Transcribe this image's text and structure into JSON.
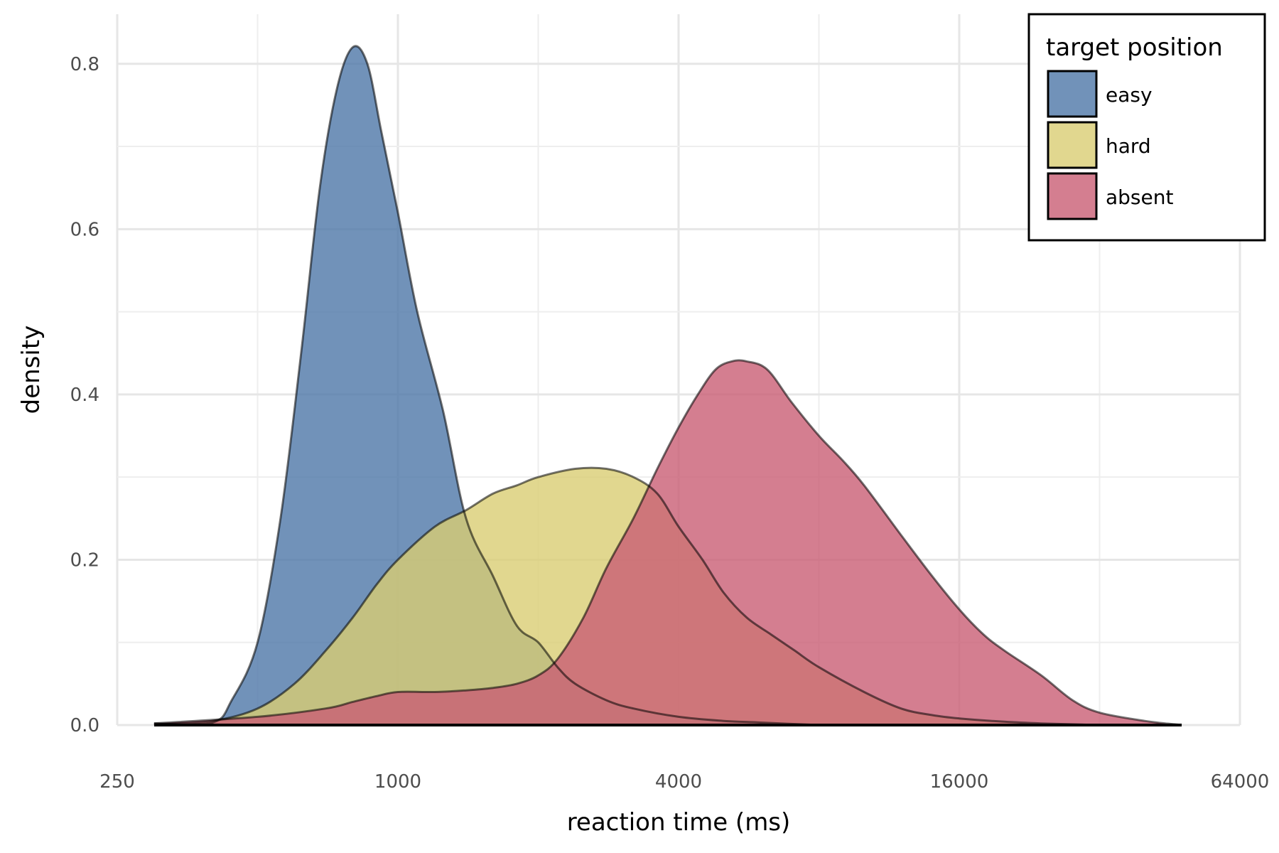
{
  "chart_data": {
    "type": "area",
    "xlabel": "reaction time (ms)",
    "ylabel": "density",
    "x_scale": "log2",
    "xlim": [
      250,
      64000
    ],
    "ylim": [
      0,
      0.86
    ],
    "x_ticks": [
      250,
      1000,
      4000,
      16000,
      64000
    ],
    "x_tick_labels": [
      "250",
      "1000",
      "4000",
      "16000",
      "64000"
    ],
    "y_ticks": [
      0.0,
      0.2,
      0.4,
      0.6,
      0.8
    ],
    "y_tick_labels": [
      "0.0",
      "0.2",
      "0.4",
      "0.6",
      "0.8"
    ],
    "grid": true,
    "legend": {
      "title": "target position",
      "placement": "top-right"
    },
    "series": [
      {
        "name": "easy",
        "color": "#4e77a8",
        "x": [
          300,
          400,
          440,
          500,
          560,
          620,
          680,
          740,
          800,
          860,
          920,
          1000,
          1100,
          1250,
          1400,
          1600,
          1800,
          2000,
          2200,
          2400,
          2800,
          3200,
          4000,
          5000,
          6000,
          8000
        ],
        "y": [
          0.002,
          0.003,
          0.03,
          0.1,
          0.25,
          0.45,
          0.65,
          0.77,
          0.82,
          0.8,
          0.72,
          0.62,
          0.5,
          0.38,
          0.25,
          0.18,
          0.12,
          0.1,
          0.07,
          0.05,
          0.03,
          0.02,
          0.01,
          0.005,
          0.003,
          0.0
        ]
      },
      {
        "name": "hard",
        "color": "#d9cd73",
        "x": [
          300,
          400,
          500,
          600,
          700,
          800,
          900,
          1000,
          1200,
          1400,
          1600,
          1800,
          2000,
          2400,
          2800,
          3200,
          3600,
          4000,
          4500,
          5000,
          5600,
          6300,
          7100,
          8000,
          10000,
          12000,
          14000,
          16000,
          20000,
          24000,
          32000
        ],
        "y": [
          0.001,
          0.005,
          0.02,
          0.05,
          0.09,
          0.13,
          0.17,
          0.2,
          0.24,
          0.26,
          0.28,
          0.29,
          0.3,
          0.31,
          0.31,
          0.3,
          0.28,
          0.24,
          0.2,
          0.16,
          0.13,
          0.11,
          0.09,
          0.07,
          0.04,
          0.02,
          0.012,
          0.008,
          0.004,
          0.002,
          0.0
        ]
      },
      {
        "name": "absent",
        "color": "#c95e74",
        "x": [
          300,
          500,
          700,
          800,
          900,
          1000,
          1200,
          1400,
          1600,
          1800,
          2000,
          2200,
          2500,
          2800,
          3200,
          3600,
          4000,
          4400,
          4800,
          5200,
          5600,
          6200,
          7000,
          8000,
          9000,
          10000,
          12000,
          14000,
          16000,
          18000,
          20000,
          24000,
          28000,
          32000,
          40000,
          48000
        ],
        "y": [
          0.002,
          0.01,
          0.02,
          0.028,
          0.035,
          0.04,
          0.04,
          0.042,
          0.045,
          0.05,
          0.06,
          0.08,
          0.13,
          0.19,
          0.25,
          0.31,
          0.36,
          0.4,
          0.43,
          0.44,
          0.44,
          0.43,
          0.39,
          0.35,
          0.32,
          0.29,
          0.23,
          0.18,
          0.14,
          0.11,
          0.09,
          0.06,
          0.03,
          0.015,
          0.005,
          0.0
        ]
      }
    ]
  }
}
